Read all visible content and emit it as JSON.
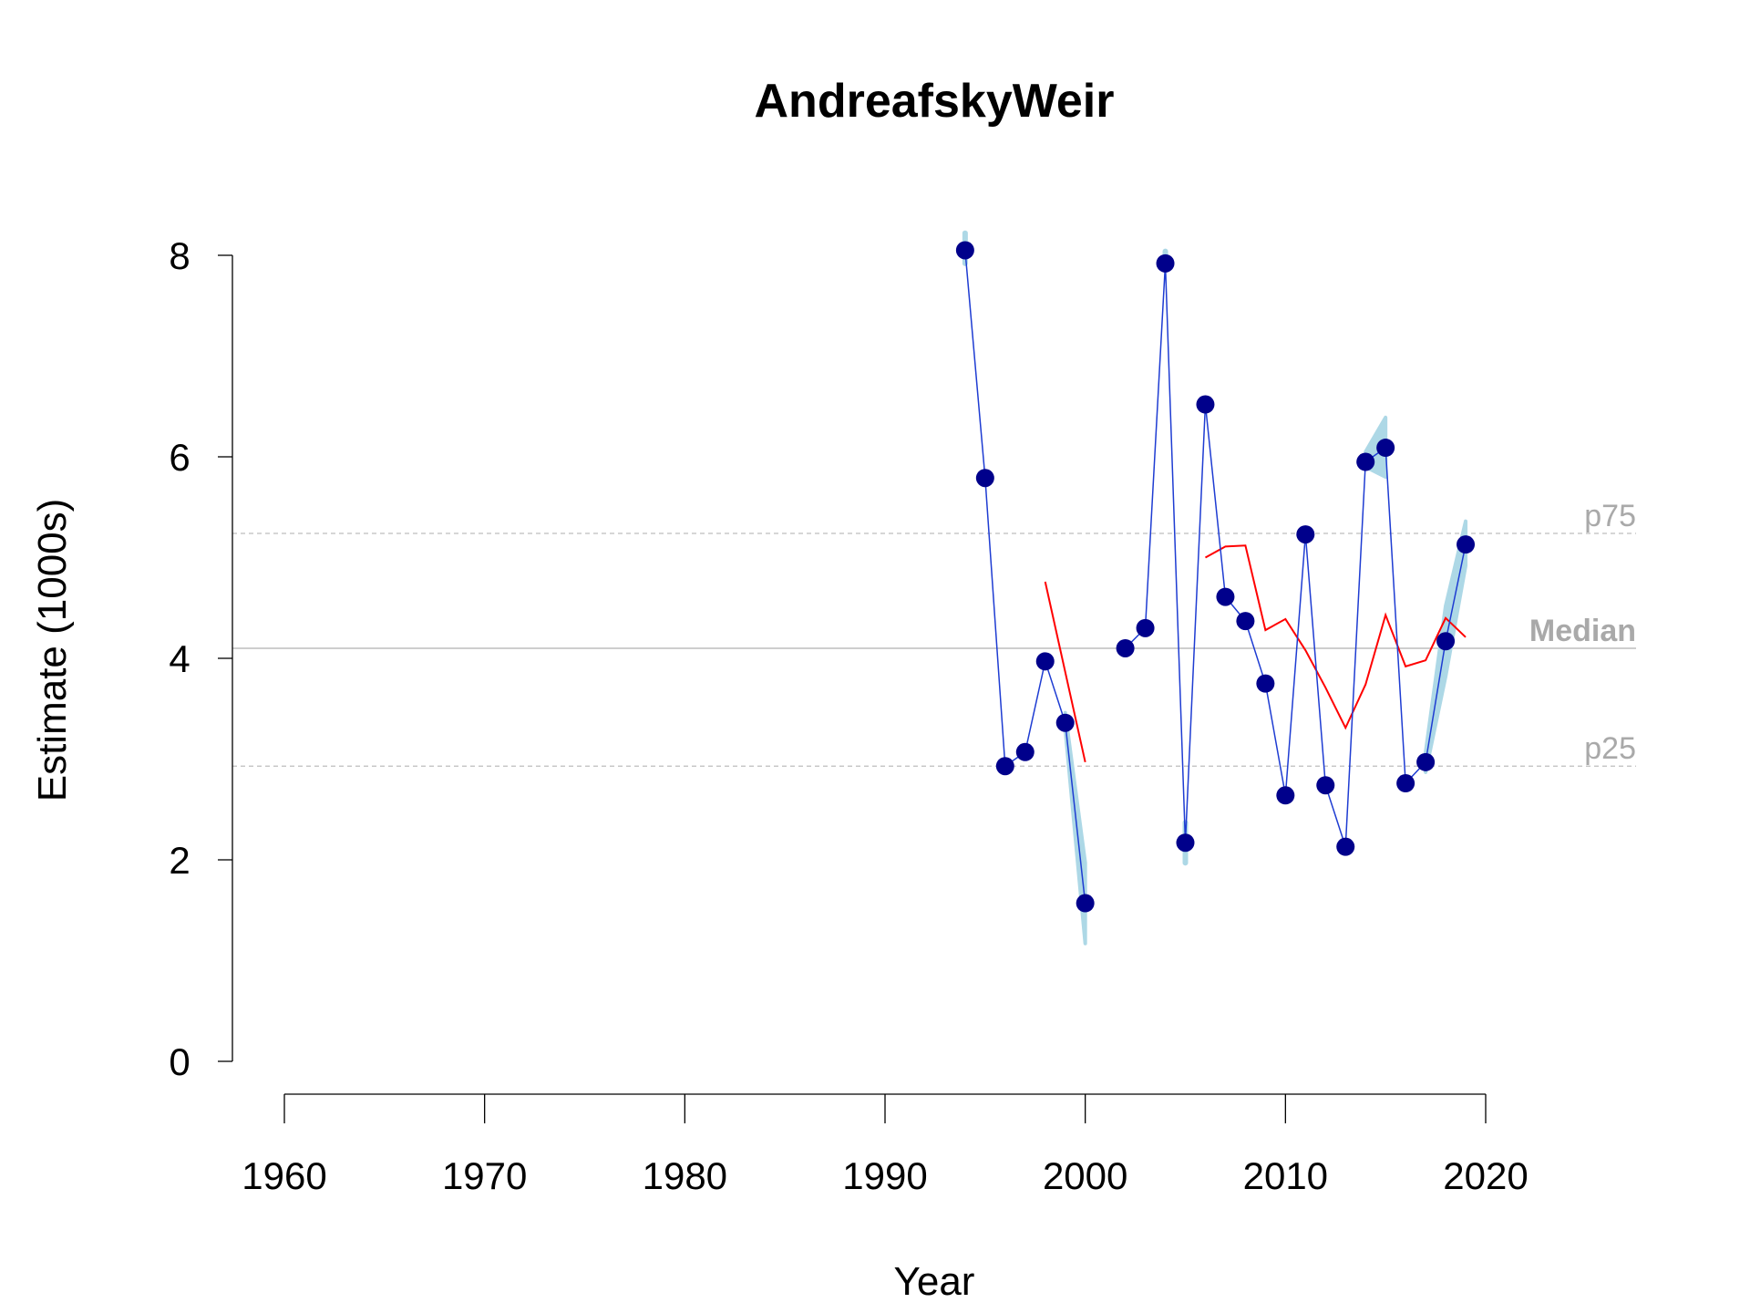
{
  "chart_data": {
    "type": "line",
    "title": "AndreafskyWeir",
    "xlabel": "Year",
    "ylabel": "Estimate (1000s)",
    "xlim": [
      1955,
      2027
    ],
    "ylim": [
      0,
      8.4
    ],
    "x_ticks": [
      1960,
      1970,
      1980,
      1990,
      2000,
      2010,
      2020
    ],
    "y_ticks": [
      0,
      2,
      4,
      6,
      8
    ],
    "grid": false,
    "reference_lines": [
      {
        "name": "p75",
        "value": 5.24,
        "style": "dashed"
      },
      {
        "name": "Median",
        "value": 4.1,
        "style": "solid"
      },
      {
        "name": "p25",
        "value": 2.93,
        "style": "dashed"
      }
    ],
    "series": [
      {
        "kind": "estimate",
        "color": "#00008b",
        "points": [
          [
            1994,
            8.05
          ],
          [
            1995,
            5.79
          ],
          [
            1996,
            2.93
          ],
          [
            1997,
            3.07
          ],
          [
            1998,
            3.97
          ],
          [
            1999,
            3.36
          ],
          [
            2000,
            1.57
          ],
          [
            2002,
            4.1
          ],
          [
            2003,
            4.3
          ],
          [
            2004,
            7.92
          ],
          [
            2005,
            2.17
          ],
          [
            2006,
            6.52
          ],
          [
            2007,
            4.61
          ],
          [
            2008,
            4.37
          ],
          [
            2009,
            3.75
          ],
          [
            2010,
            2.64
          ],
          [
            2011,
            5.23
          ],
          [
            2012,
            2.74
          ],
          [
            2013,
            2.13
          ],
          [
            2014,
            5.95
          ],
          [
            2015,
            6.09
          ],
          [
            2016,
            2.76
          ],
          [
            2017,
            2.97
          ],
          [
            2018,
            4.17
          ],
          [
            2019,
            5.13
          ]
        ],
        "segments": [
          [
            1994,
            2000
          ],
          [
            2002,
            2019
          ]
        ]
      },
      {
        "kind": "running-average",
        "color": "#ff0000",
        "segments": [
          [
            [
              1998,
              4.76
            ],
            [
              2000,
              2.97
            ]
          ],
          [
            [
              2006,
              5.0
            ],
            [
              2007,
              5.11
            ],
            [
              2008,
              5.12
            ],
            [
              2009,
              4.28
            ],
            [
              2010,
              4.39
            ],
            [
              2011,
              4.08
            ],
            [
              2012,
              3.71
            ],
            [
              2013,
              3.31
            ],
            [
              2014,
              3.74
            ],
            [
              2015,
              4.43
            ],
            [
              2016,
              3.92
            ],
            [
              2017,
              3.98
            ],
            [
              2018,
              4.4
            ],
            [
              2019,
              4.21
            ]
          ]
        ]
      },
      {
        "kind": "uncertainty-band",
        "color": "#add8e6",
        "segments": [
          [
            [
              1994,
              7.92,
              8.22
            ]
          ],
          [
            [
              1999,
              3.3,
              3.46
            ],
            [
              2000,
              1.17,
              1.97
            ]
          ],
          [
            [
              2004,
              7.88,
              8.04
            ]
          ],
          [
            [
              2005,
              1.97,
              2.37
            ]
          ],
          [
            [
              2014,
              5.9,
              6.05
            ],
            [
              2015,
              5.8,
              6.39
            ]
          ],
          [
            [
              2017,
              2.87,
              3.07
            ],
            [
              2018,
              3.82,
              4.52
            ],
            [
              2019,
              4.92,
              5.36
            ]
          ]
        ]
      }
    ]
  }
}
